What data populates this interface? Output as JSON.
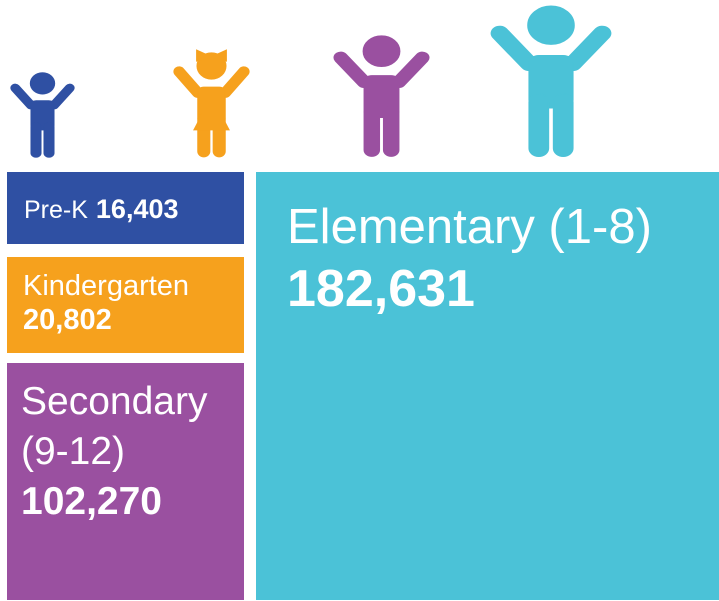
{
  "blocks": [
    {
      "label": "Pre-K",
      "value": "16,403"
    },
    {
      "label": "Kindergarten",
      "value": "20,802"
    },
    {
      "label": "Secondary (9-12)",
      "value": "102,270"
    },
    {
      "label": "Elementary (1-8)",
      "value": "182,631"
    }
  ]
}
